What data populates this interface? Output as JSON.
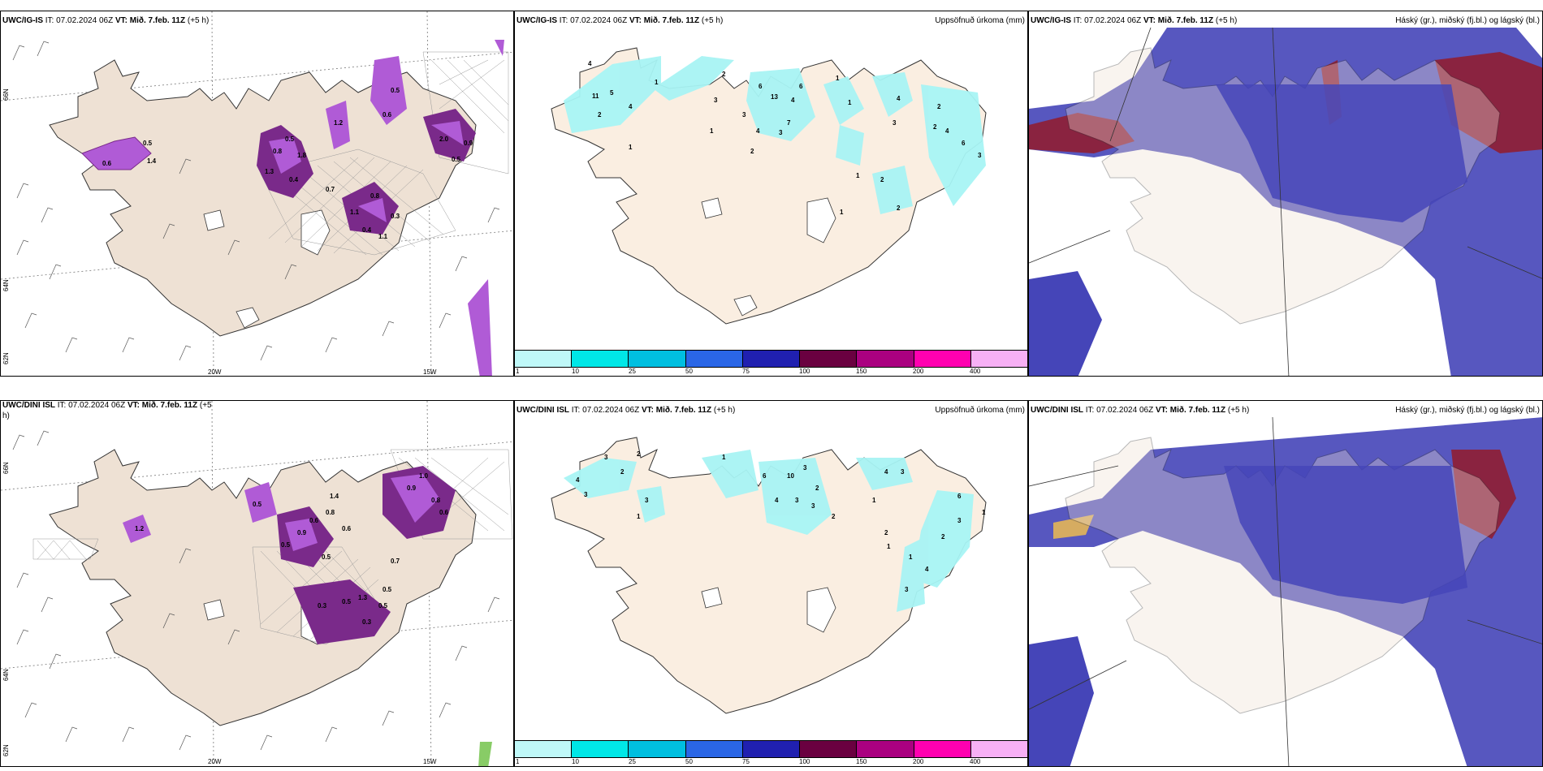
{
  "colors": {
    "land": "#eee1d4",
    "coast": "#333333",
    "snow_shade_1": "#b05bd6",
    "snow_shade_2": "#7a2a8a",
    "precip_light": "#a8f4f4",
    "cloud_high": "#4545b8",
    "cloud_mid": "#8a2340",
    "cloud_low": "#8ad0f0"
  },
  "panels": {
    "top_left": {
      "model": "UWC/IG-IS",
      "it_label": "IT:",
      "it_value": "07.02.2024 06Z",
      "vt_label": "VT:",
      "vt_value": "Mið. 7.feb. 11Z",
      "lead": "(+5 h)",
      "lat_labels": [
        "66N",
        "64N",
        "62N"
      ],
      "lon_labels": [
        "20W",
        "15W"
      ],
      "snow_values": [
        "0.6",
        "1.4",
        "0.5",
        "0.8",
        "0.5",
        "1.3",
        "1.8",
        "1.2",
        "0.7",
        "0.4",
        "0.8",
        "0.4",
        "0.3",
        "1.1",
        "0.5",
        "0.6",
        "2.0",
        "0.5",
        "0.9",
        "1.1"
      ]
    },
    "top_mid": {
      "model": "UWC/IG-IS",
      "it_label": "IT:",
      "it_value": "07.02.2024 06Z",
      "vt_label": "VT:",
      "vt_value": "Mið. 7.feb. 11Z",
      "lead": "(+5 h)",
      "field": "Uppsöfnuð úrkoma (mm)",
      "values": [
        "4",
        "11",
        "5",
        "4",
        "2",
        "1",
        "1",
        "3",
        "2",
        "6",
        "13",
        "6",
        "1",
        "4",
        "3",
        "3",
        "4",
        "7",
        "1",
        "2",
        "1",
        "4",
        "3",
        "2",
        "2",
        "4",
        "6",
        "3",
        "2",
        "1",
        "2",
        "1"
      ]
    },
    "top_right": {
      "model": "UWC/IG-IS",
      "it_label": "IT:",
      "it_value": "07.02.2024 06Z",
      "vt_label": "VT:",
      "vt_value": "Mið. 7.feb. 11Z",
      "lead": "(+5 h)",
      "field": "Háský (gr.), miðský (fj.bl.) og lágský (bl.)"
    },
    "bottom_left": {
      "model": "UWC/DINI ISL",
      "it_label": "IT:",
      "it_value": "07.02.2024 06Z",
      "vt_label": "VT:",
      "vt_value": "Mið. 7.feb. 11Z",
      "lead_part1": "(+5",
      "lead_part2": "h)",
      "lat_labels": [
        "66N",
        "64N",
        "62N"
      ],
      "lon_labels": [
        "20W",
        "15W"
      ],
      "snow_values": [
        "1.2",
        "0.5",
        "0.9",
        "0.6",
        "0.5",
        "1.4",
        "0.8",
        "0.6",
        "0.5",
        "0.3",
        "0.5",
        "1.3",
        "0.5",
        "0.5",
        "0.9",
        "1.0",
        "0.8",
        "0.6",
        "0.7",
        "0.3"
      ]
    },
    "bottom_mid": {
      "model": "UWC/DINI ISL",
      "it_label": "IT:",
      "it_value": "07.02.2024 06Z",
      "vt_label": "VT:",
      "vt_value": "Mið. 7.feb. 11Z",
      "lead": "(+5 h)",
      "field": "Uppsöfnuð úrkoma (mm)",
      "values": [
        "3",
        "2",
        "4",
        "3",
        "2",
        "3",
        "1",
        "1",
        "6",
        "10",
        "3",
        "2",
        "4",
        "3",
        "3",
        "2",
        "1",
        "4",
        "3",
        "6",
        "3",
        "2",
        "2",
        "1",
        "1",
        "1",
        "4",
        "3"
      ]
    },
    "bottom_right": {
      "model": "UWC/DINI ISL",
      "it_label": "IT:",
      "it_value": "07.02.2024 06Z",
      "vt_label": "VT:",
      "vt_value": "Mið. 7.feb. 11Z",
      "lead": "(+5 h)",
      "field": "Háský (gr.), miðský (fj.bl.) og lágský (bl.)"
    }
  },
  "colorbar": {
    "labels": [
      "1",
      "10",
      "25",
      "50",
      "75",
      "100",
      "150",
      "200",
      "400"
    ],
    "colors": [
      "#bff8f8",
      "#00e7e7",
      "#00bfe0",
      "#2a66e6",
      "#2020b0",
      "#6a0040",
      "#aa0080",
      "#ff00b0",
      "#f7b0f5"
    ]
  }
}
